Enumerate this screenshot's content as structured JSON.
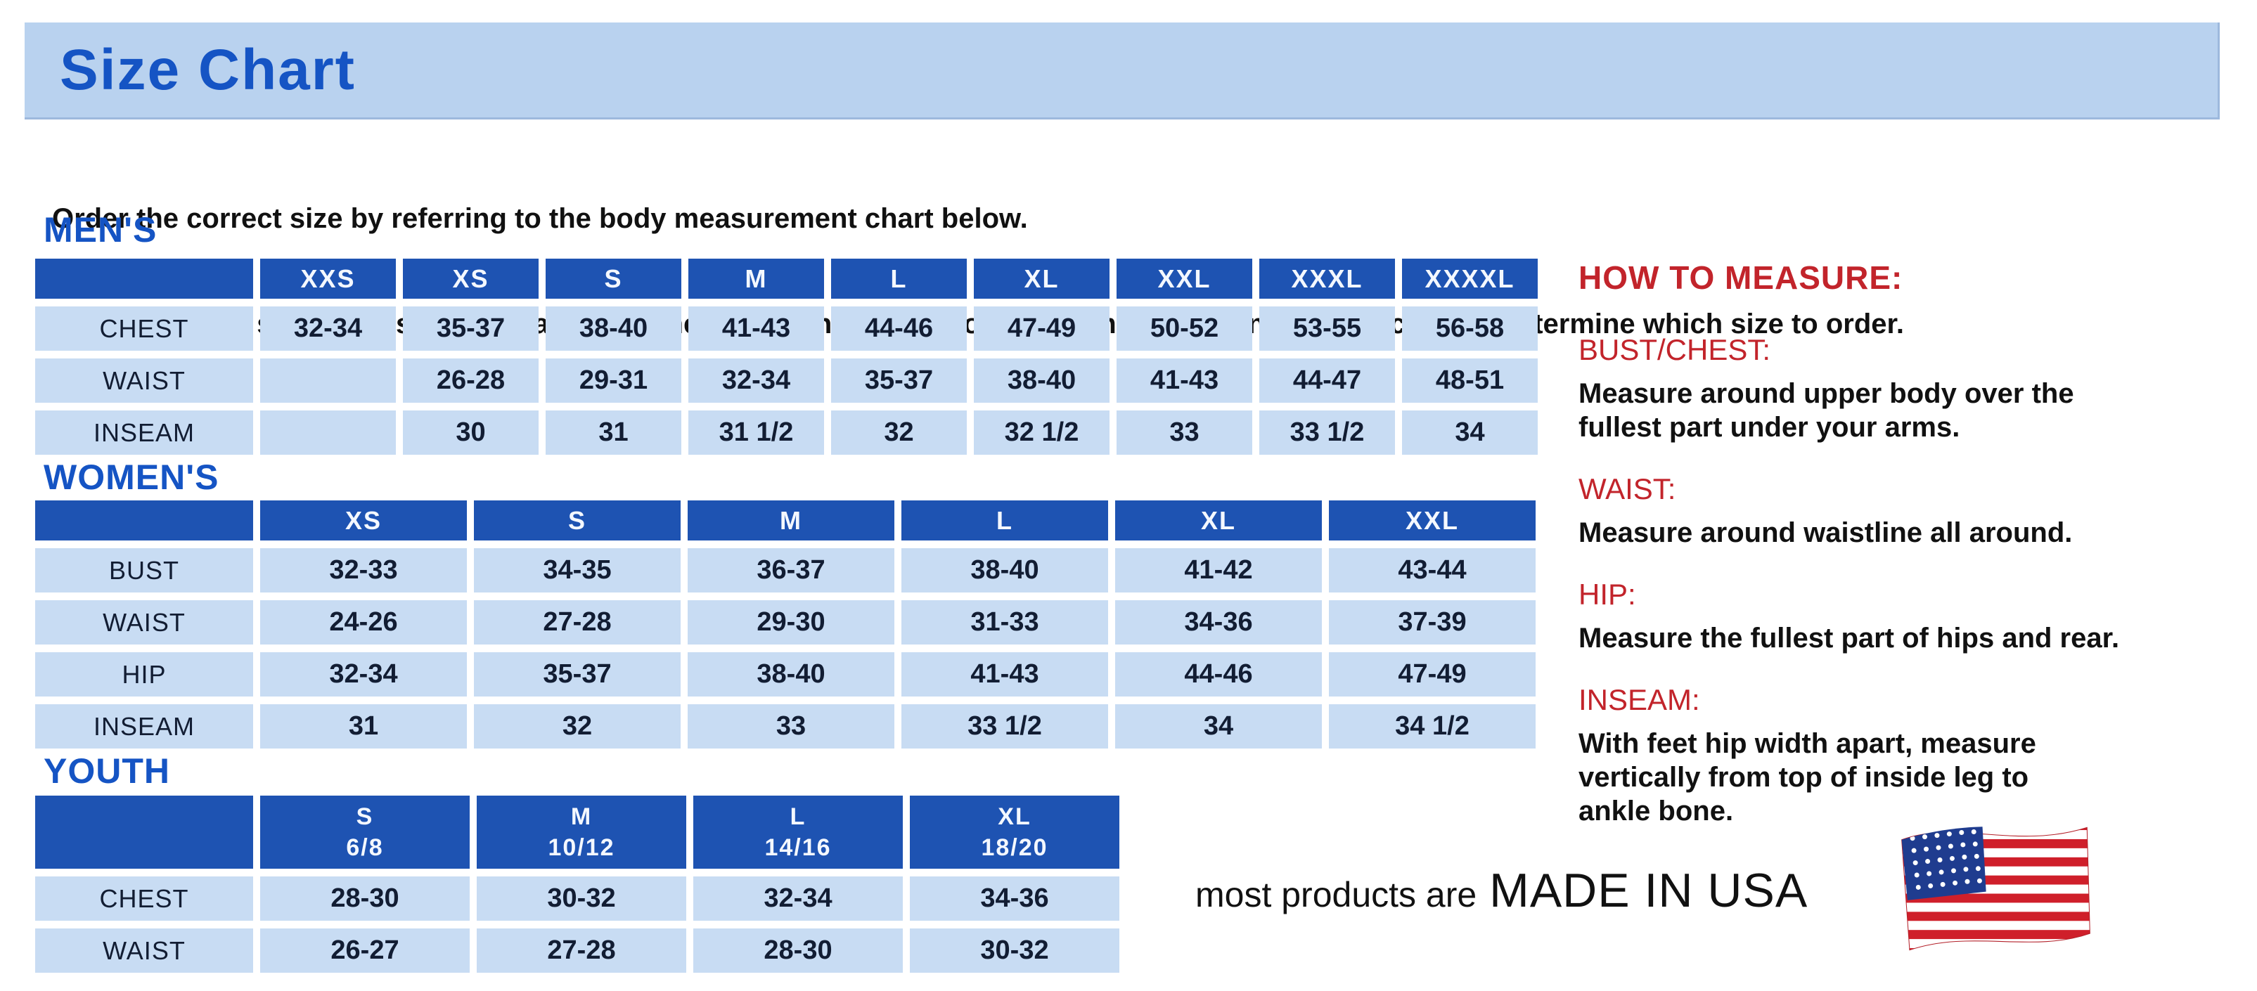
{
  "title": "Size Chart",
  "intro": {
    "line1": "Order the correct size by referring to the body measurement chart below.",
    "line2": "Measurements shown on size chart are body measurements.  Find your body measurements on the chart to determine which size to order."
  },
  "tables": {
    "mens": {
      "heading": "MEN'S",
      "columns": [
        "XXS",
        "XS",
        "S",
        "M",
        "L",
        "XL",
        "XXL",
        "XXXL",
        "XXXXL"
      ],
      "rows": [
        {
          "label": "CHEST",
          "values": [
            "32-34",
            "35-37",
            "38-40",
            "41-43",
            "44-46",
            "47-49",
            "50-52",
            "53-55",
            "56-58"
          ]
        },
        {
          "label": "WAIST",
          "values": [
            "",
            "26-28",
            "29-31",
            "32-34",
            "35-37",
            "38-40",
            "41-43",
            "44-47",
            "48-51"
          ]
        },
        {
          "label": "INSEAM",
          "values": [
            "",
            "30",
            "31",
            "31 1/2",
            "32",
            "32 1/2",
            "33",
            "33 1/2",
            "34"
          ]
        }
      ]
    },
    "womens": {
      "heading": "WOMEN'S",
      "columns": [
        "XS",
        "S",
        "M",
        "L",
        "XL",
        "XXL"
      ],
      "rows": [
        {
          "label": "BUST",
          "values": [
            "32-33",
            "34-35",
            "36-37",
            "38-40",
            "41-42",
            "43-44"
          ]
        },
        {
          "label": "WAIST",
          "values": [
            "24-26",
            "27-28",
            "29-30",
            "31-33",
            "34-36",
            "37-39"
          ]
        },
        {
          "label": "HIP",
          "values": [
            "32-34",
            "35-37",
            "38-40",
            "41-43",
            "44-46",
            "47-49"
          ]
        },
        {
          "label": "INSEAM",
          "values": [
            "31",
            "32",
            "33",
            "33 1/2",
            "34",
            "34 1/2"
          ]
        }
      ]
    },
    "youth": {
      "heading": "YOUTH",
      "columns": [
        "S\n6/8",
        "M\n10/12",
        "L\n14/16",
        "XL\n18/20"
      ],
      "rows": [
        {
          "label": "CHEST",
          "values": [
            "28-30",
            "30-32",
            "32-34",
            "34-36"
          ]
        },
        {
          "label": "WAIST",
          "values": [
            "26-27",
            "27-28",
            "28-30",
            "30-32"
          ]
        }
      ]
    }
  },
  "how_to_measure": {
    "title": "HOW TO MEASURE:",
    "items": [
      {
        "label": "BUST/CHEST:",
        "text": "Measure around upper body over the\nfullest part under your arms."
      },
      {
        "label": "WAIST:",
        "text": "Measure around waistline all around."
      },
      {
        "label": "HIP:",
        "text": "Measure the fullest part of hips and rear."
      },
      {
        "label": "INSEAM:",
        "text": "With feet hip width apart, measure\nvertically from top of inside leg to\nankle bone."
      }
    ]
  },
  "footer": {
    "prefix": "most products are",
    "emphasis": "MADE IN USA"
  },
  "colors": {
    "banner_bg": "#b9d2ef",
    "heading_blue": "#1554c4",
    "table_header_bg": "#1e53b2",
    "table_cell_bg": "#c8dcf3",
    "accent_red": "#c2242b",
    "body_text": "#111111"
  }
}
